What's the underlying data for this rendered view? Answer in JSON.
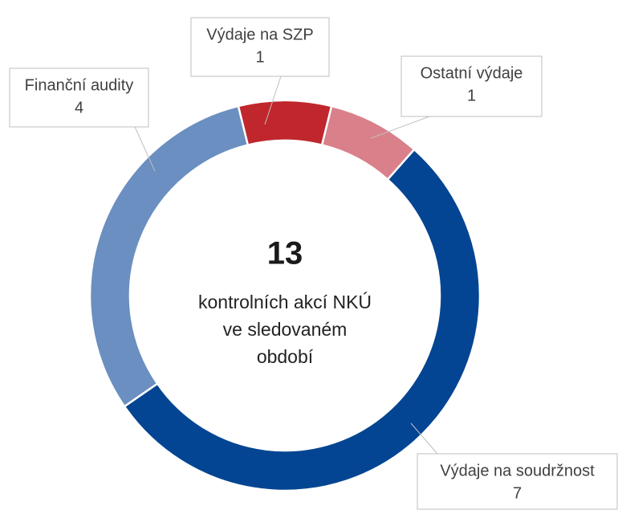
{
  "chart_data": {
    "type": "donut",
    "categories": [
      "Výdaje na SZP",
      "Ostatní výdaje",
      "Výdaje na soudržnost",
      "Finanční audity"
    ],
    "values": [
      1,
      1,
      7,
      4
    ],
    "colors": [
      "#c0272d",
      "#d9808a",
      "#034592",
      "#6a8fc0"
    ],
    "center_value": 13,
    "center_text": [
      "kontrolních akcí NKÚ",
      "ve sledovaném",
      "období"
    ]
  }
}
